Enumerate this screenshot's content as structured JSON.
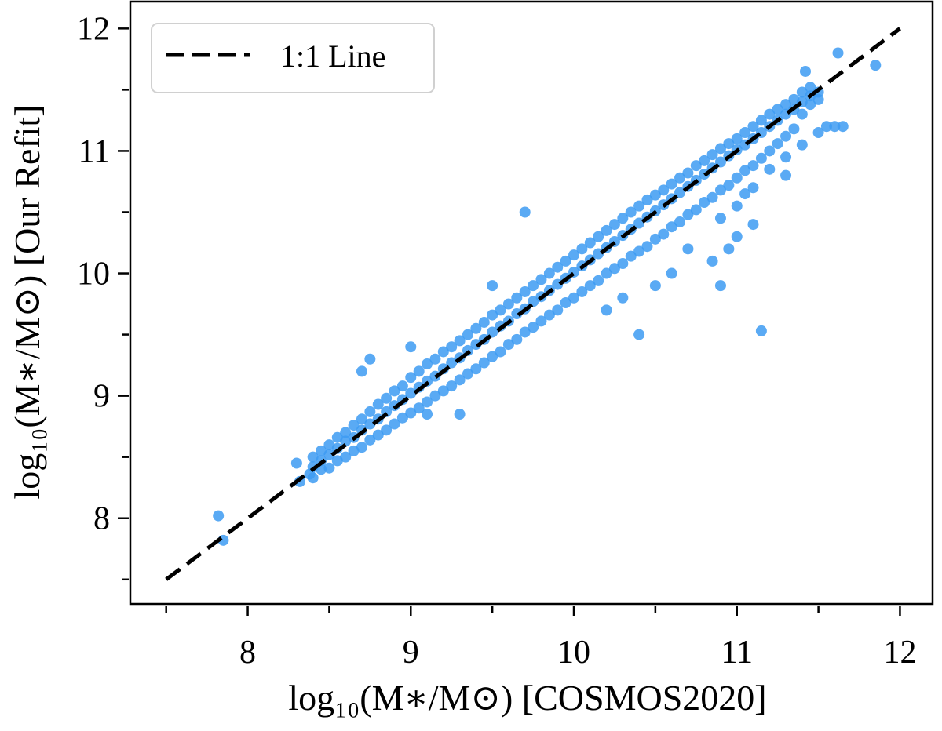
{
  "chart_data": {
    "type": "scatter",
    "title": "",
    "xlabel": "log₁₀(M∗/M⊙) [COSMOS2020]",
    "ylabel": "log₁₀(M∗/M⊙) [Our Refit]",
    "xlim": [
      7.28,
      12.2
    ],
    "ylim": [
      7.3,
      12.22
    ],
    "xticks": [
      8,
      9,
      10,
      11,
      12
    ],
    "yticks": [
      8,
      9,
      10,
      11,
      12
    ],
    "minor_ticks_step": 0.5,
    "grid": false,
    "legend": {
      "placement": "top-left",
      "entries": [
        {
          "label": "1:1 Line",
          "style": "dashed",
          "color": "#000000"
        }
      ]
    },
    "reference_line": {
      "label": "1:1 Line",
      "x": [
        7.5,
        12
      ],
      "y": [
        7.5,
        12
      ],
      "color": "#000000"
    },
    "point_color": "#3d9bf2",
    "points": [
      [
        7.82,
        8.02
      ],
      [
        7.85,
        7.82
      ],
      [
        8.3,
        8.45
      ],
      [
        8.32,
        8.3
      ],
      [
        8.38,
        8.36
      ],
      [
        8.7,
        9.2
      ],
      [
        8.75,
        9.3
      ],
      [
        9.7,
        10.5
      ],
      [
        11.15,
        9.53
      ],
      [
        10.85,
        10.1
      ],
      [
        11.6,
        11.2
      ],
      [
        11.65,
        11.2
      ],
      [
        11.85,
        11.7
      ],
      [
        11.62,
        11.8
      ],
      [
        11.42,
        11.65
      ],
      [
        9.3,
        8.85
      ],
      [
        9.1,
        8.85
      ],
      [
        10.4,
        9.5
      ],
      [
        10.9,
        9.9
      ],
      [
        9.0,
        9.4
      ],
      [
        9.5,
        9.9
      ],
      [
        10.9,
        10.45
      ],
      [
        11.0,
        10.55
      ],
      [
        11.05,
        10.65
      ],
      [
        11.1,
        10.7
      ],
      [
        11.2,
        10.85
      ],
      [
        11.3,
        10.95
      ],
      [
        11.4,
        11.05
      ],
      [
        11.5,
        11.15
      ],
      [
        11.55,
        11.2
      ],
      [
        10.95,
        10.2
      ],
      [
        11.1,
        10.4
      ],
      [
        10.7,
        10.2
      ],
      [
        10.6,
        10.0
      ],
      [
        10.5,
        9.9
      ],
      [
        10.3,
        9.8
      ],
      [
        10.2,
        9.7
      ],
      [
        11.3,
        10.8
      ],
      [
        11.0,
        10.3
      ],
      [
        8.4,
        8.33
      ],
      [
        8.4,
        8.42
      ],
      [
        8.4,
        8.5
      ],
      [
        8.45,
        8.4
      ],
      [
        8.45,
        8.47
      ],
      [
        8.45,
        8.55
      ],
      [
        8.5,
        8.41
      ],
      [
        8.5,
        8.52
      ],
      [
        8.5,
        8.6
      ],
      [
        8.55,
        8.47
      ],
      [
        8.55,
        8.57
      ],
      [
        8.55,
        8.66
      ],
      [
        8.6,
        8.5
      ],
      [
        8.6,
        8.63
      ],
      [
        8.6,
        8.7
      ],
      [
        8.65,
        8.55
      ],
      [
        8.65,
        8.66
      ],
      [
        8.65,
        8.76
      ],
      [
        8.7,
        8.58
      ],
      [
        8.7,
        8.72
      ],
      [
        8.7,
        8.81
      ],
      [
        8.75,
        8.64
      ],
      [
        8.75,
        8.77
      ],
      [
        8.75,
        8.87
      ],
      [
        8.8,
        8.68
      ],
      [
        8.8,
        8.81
      ],
      [
        8.8,
        8.93
      ],
      [
        8.85,
        8.72
      ],
      [
        8.85,
        8.87
      ],
      [
        8.85,
        8.98
      ],
      [
        8.9,
        8.77
      ],
      [
        8.9,
        8.92
      ],
      [
        8.9,
        9.04
      ],
      [
        8.95,
        8.82
      ],
      [
        8.95,
        8.97
      ],
      [
        8.95,
        9.08
      ],
      [
        9.0,
        8.86
      ],
      [
        9.0,
        9.02
      ],
      [
        9.0,
        9.15
      ],
      [
        9.05,
        8.9
      ],
      [
        9.05,
        9.07
      ],
      [
        9.05,
        9.2
      ],
      [
        9.1,
        8.95
      ],
      [
        9.1,
        9.12
      ],
      [
        9.1,
        9.26
      ],
      [
        9.15,
        9.0
      ],
      [
        9.15,
        9.16
      ],
      [
        9.15,
        9.3
      ],
      [
        9.2,
        9.04
      ],
      [
        9.2,
        9.22
      ],
      [
        9.2,
        9.36
      ],
      [
        9.25,
        9.08
      ],
      [
        9.25,
        9.27
      ],
      [
        9.25,
        9.4
      ],
      [
        9.3,
        9.13
      ],
      [
        9.3,
        9.31
      ],
      [
        9.3,
        9.45
      ],
      [
        9.35,
        9.18
      ],
      [
        9.35,
        9.37
      ],
      [
        9.35,
        9.5
      ],
      [
        9.4,
        9.22
      ],
      [
        9.4,
        9.42
      ],
      [
        9.4,
        9.55
      ],
      [
        9.45,
        9.27
      ],
      [
        9.45,
        9.46
      ],
      [
        9.45,
        9.6
      ],
      [
        9.5,
        9.32
      ],
      [
        9.5,
        9.52
      ],
      [
        9.5,
        9.66
      ],
      [
        9.55,
        9.36
      ],
      [
        9.55,
        9.57
      ],
      [
        9.55,
        9.7
      ],
      [
        9.6,
        9.42
      ],
      [
        9.6,
        9.61
      ],
      [
        9.6,
        9.75
      ],
      [
        9.65,
        9.46
      ],
      [
        9.65,
        9.67
      ],
      [
        9.65,
        9.8
      ],
      [
        9.7,
        9.52
      ],
      [
        9.7,
        9.71
      ],
      [
        9.7,
        9.85
      ],
      [
        9.75,
        9.56
      ],
      [
        9.75,
        9.77
      ],
      [
        9.75,
        9.9
      ],
      [
        9.8,
        9.61
      ],
      [
        9.8,
        9.81
      ],
      [
        9.8,
        9.95
      ],
      [
        9.85,
        9.66
      ],
      [
        9.85,
        9.86
      ],
      [
        9.85,
        10.0
      ],
      [
        9.9,
        9.7
      ],
      [
        9.9,
        9.91
      ],
      [
        9.9,
        10.05
      ],
      [
        9.95,
        9.76
      ],
      [
        9.95,
        9.96
      ],
      [
        9.95,
        10.1
      ],
      [
        10.0,
        9.8
      ],
      [
        10.0,
        10.01
      ],
      [
        10.0,
        10.15
      ],
      [
        10.05,
        9.85
      ],
      [
        10.05,
        10.06
      ],
      [
        10.05,
        10.2
      ],
      [
        10.1,
        9.9
      ],
      [
        10.1,
        10.11
      ],
      [
        10.1,
        10.25
      ],
      [
        10.15,
        9.94
      ],
      [
        10.15,
        10.16
      ],
      [
        10.15,
        10.3
      ],
      [
        10.2,
        10.0
      ],
      [
        10.2,
        10.21
      ],
      [
        10.2,
        10.35
      ],
      [
        10.25,
        10.04
      ],
      [
        10.25,
        10.26
      ],
      [
        10.25,
        10.4
      ],
      [
        10.3,
        10.08
      ],
      [
        10.3,
        10.31
      ],
      [
        10.3,
        10.45
      ],
      [
        10.35,
        10.14
      ],
      [
        10.35,
        10.36
      ],
      [
        10.35,
        10.5
      ],
      [
        10.4,
        10.18
      ],
      [
        10.4,
        10.41
      ],
      [
        10.4,
        10.55
      ],
      [
        10.45,
        10.22
      ],
      [
        10.45,
        10.46
      ],
      [
        10.45,
        10.6
      ],
      [
        10.5,
        10.28
      ],
      [
        10.5,
        10.51
      ],
      [
        10.5,
        10.64
      ],
      [
        10.55,
        10.32
      ],
      [
        10.55,
        10.56
      ],
      [
        10.55,
        10.68
      ],
      [
        10.6,
        10.38
      ],
      [
        10.6,
        10.61
      ],
      [
        10.6,
        10.73
      ],
      [
        10.65,
        10.42
      ],
      [
        10.65,
        10.66
      ],
      [
        10.65,
        10.78
      ],
      [
        10.7,
        10.48
      ],
      [
        10.7,
        10.71
      ],
      [
        10.7,
        10.82
      ],
      [
        10.75,
        10.52
      ],
      [
        10.75,
        10.76
      ],
      [
        10.75,
        10.88
      ],
      [
        10.8,
        10.58
      ],
      [
        10.8,
        10.81
      ],
      [
        10.8,
        10.92
      ],
      [
        10.85,
        10.62
      ],
      [
        10.85,
        10.86
      ],
      [
        10.85,
        10.97
      ],
      [
        10.9,
        10.68
      ],
      [
        10.9,
        10.91
      ],
      [
        10.9,
        11.02
      ],
      [
        10.95,
        10.72
      ],
      [
        10.95,
        10.96
      ],
      [
        10.95,
        11.06
      ],
      [
        11.0,
        10.78
      ],
      [
        11.0,
        11.01
      ],
      [
        11.0,
        11.1
      ],
      [
        11.05,
        10.84
      ],
      [
        11.05,
        11.05
      ],
      [
        11.05,
        11.15
      ],
      [
        11.1,
        10.88
      ],
      [
        11.1,
        11.1
      ],
      [
        11.1,
        11.2
      ],
      [
        11.15,
        10.94
      ],
      [
        11.15,
        11.15
      ],
      [
        11.15,
        11.25
      ],
      [
        11.2,
        11.0
      ],
      [
        11.2,
        11.2
      ],
      [
        11.2,
        11.3
      ],
      [
        11.25,
        11.06
      ],
      [
        11.25,
        11.25
      ],
      [
        11.25,
        11.34
      ],
      [
        11.3,
        11.12
      ],
      [
        11.3,
        11.3
      ],
      [
        11.3,
        11.38
      ],
      [
        11.35,
        11.18
      ],
      [
        11.35,
        11.34
      ],
      [
        11.35,
        11.42
      ],
      [
        11.4,
        11.3
      ],
      [
        11.4,
        11.4
      ],
      [
        11.4,
        11.48
      ],
      [
        11.45,
        11.38
      ],
      [
        11.45,
        11.45
      ],
      [
        11.45,
        11.52
      ],
      [
        11.5,
        11.42
      ],
      [
        11.5,
        11.48
      ]
    ]
  }
}
